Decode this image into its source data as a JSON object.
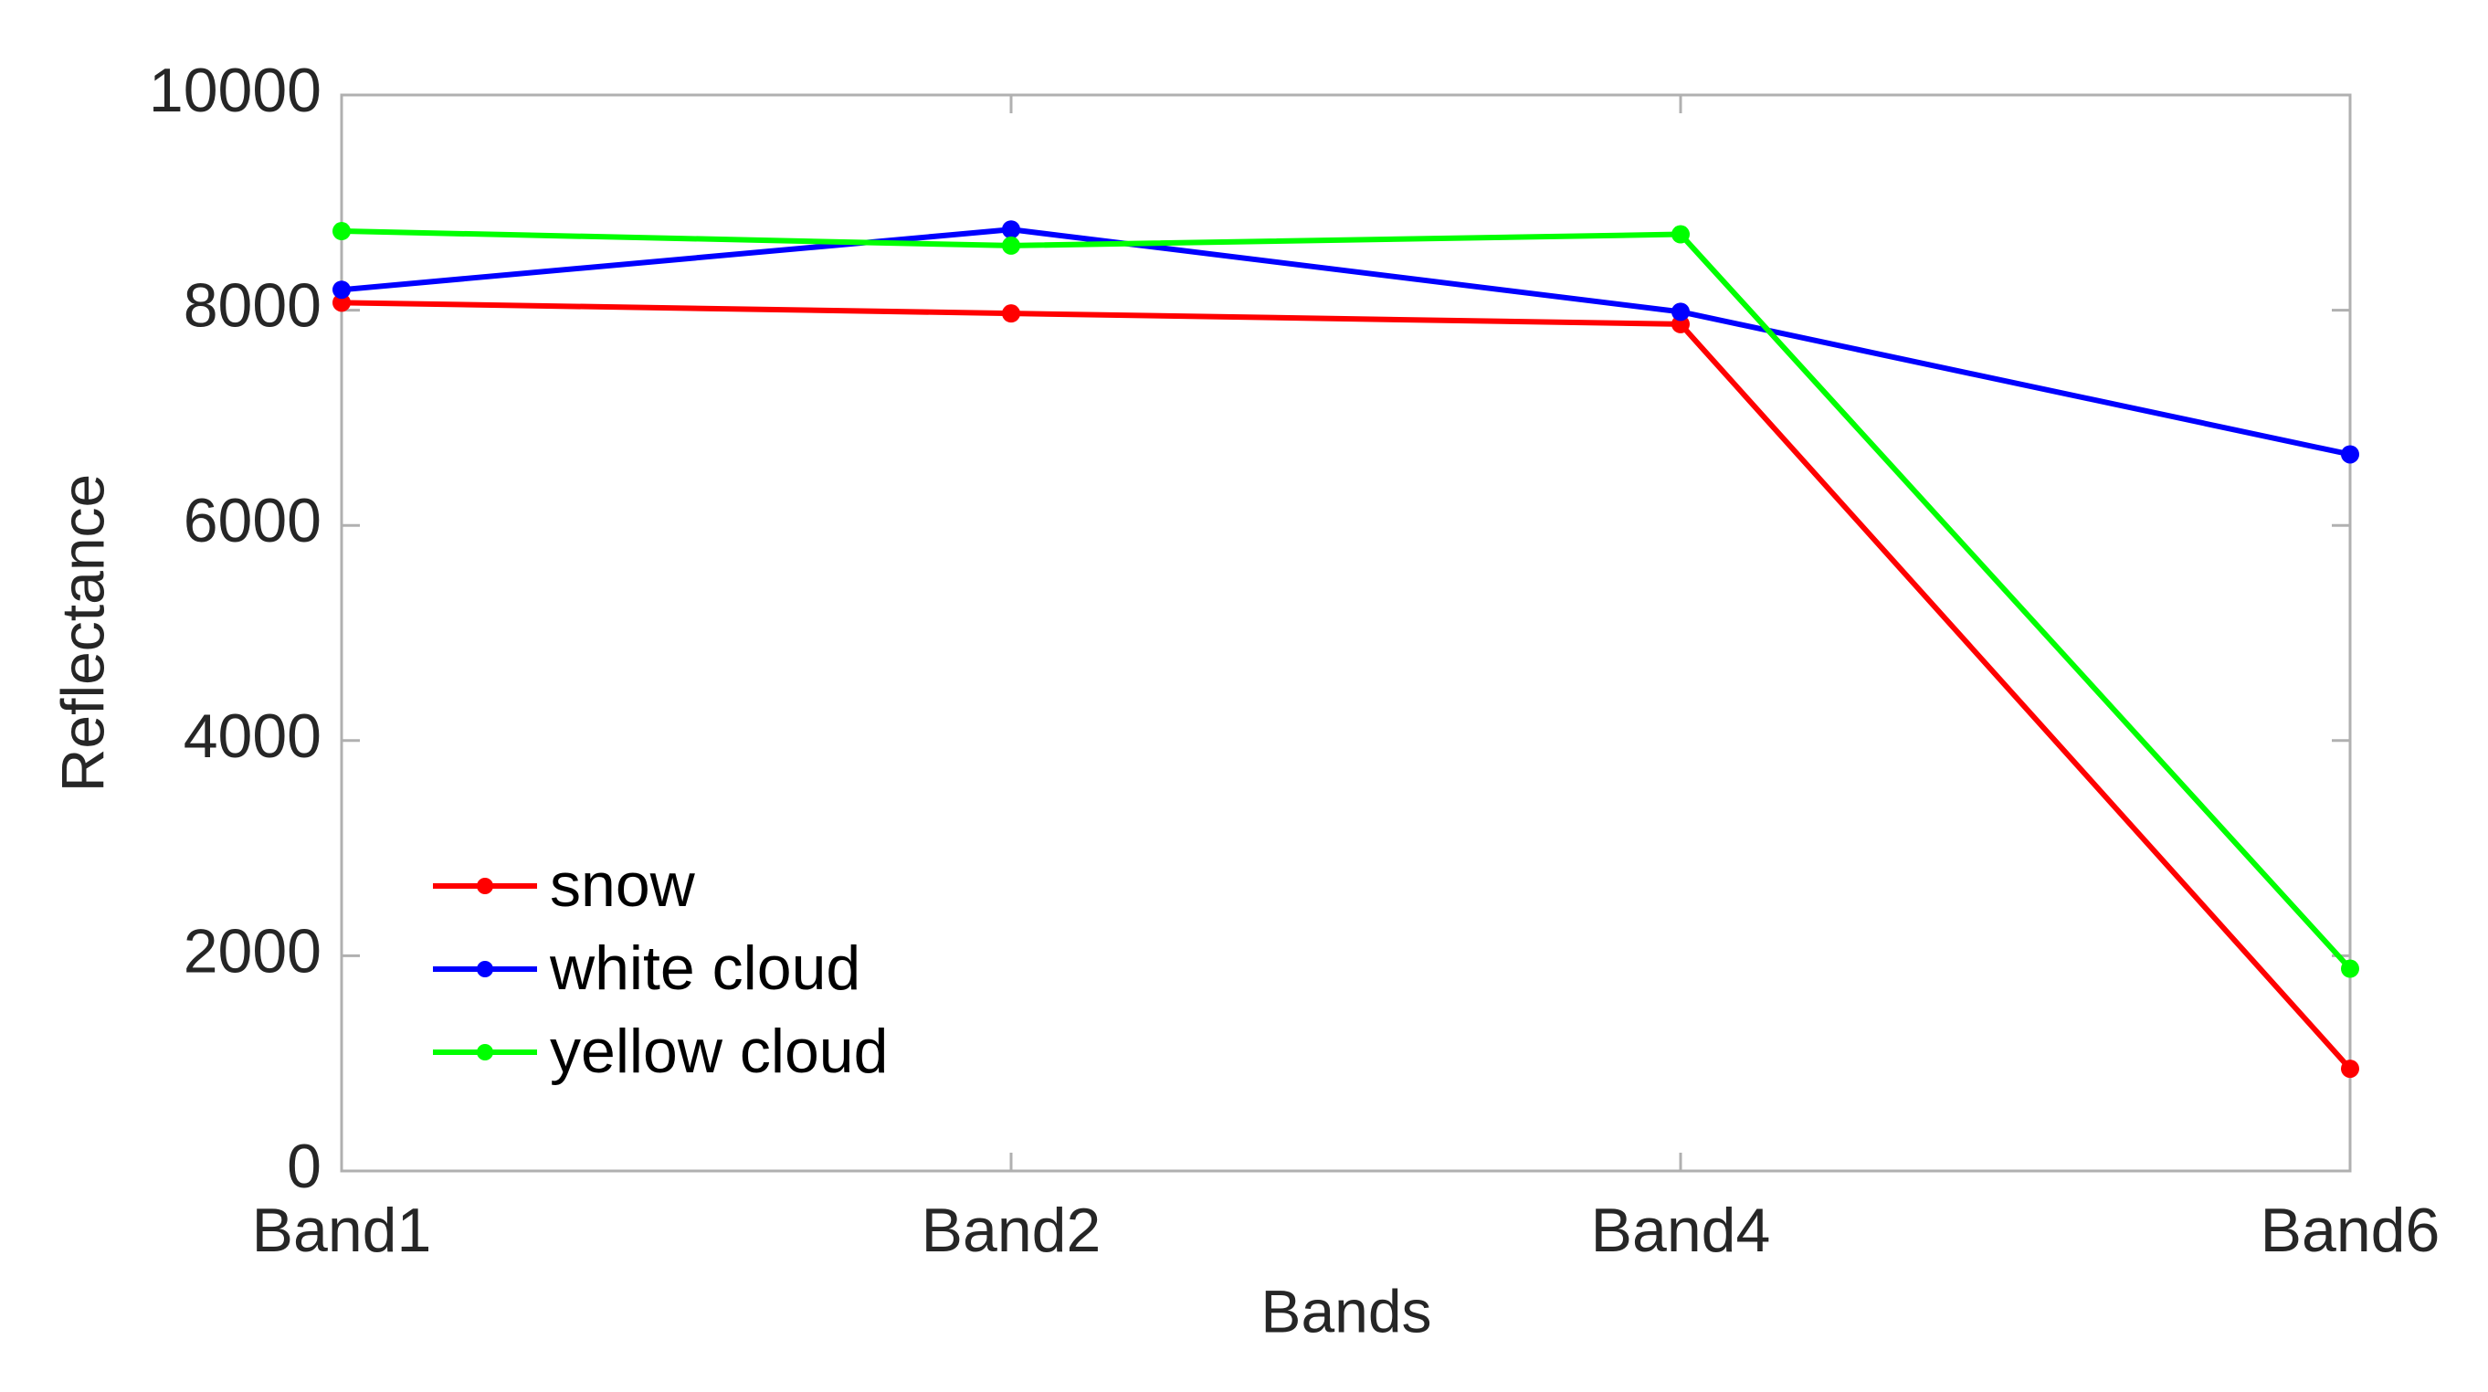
{
  "chart_data": {
    "type": "line",
    "xlabel": "Bands",
    "ylabel": "Reflectance",
    "categories": [
      "Band1",
      "Band2",
      "Band4",
      "Band6"
    ],
    "series": [
      {
        "name": "snow",
        "color": "#ff0000",
        "values": [
          8070,
          7970,
          7870,
          950
        ]
      },
      {
        "name": "white cloud",
        "color": "#0000ff",
        "values": [
          8190,
          8750,
          7985,
          6660
        ]
      },
      {
        "name": "yellow cloud",
        "color": "#00ff00",
        "values": [
          8735,
          8600,
          8705,
          1880
        ]
      }
    ],
    "ylim": [
      0,
      10000
    ],
    "yticks": [
      0,
      2000,
      4000,
      6000,
      8000,
      10000
    ],
    "grid": false,
    "legend": "lower left"
  }
}
